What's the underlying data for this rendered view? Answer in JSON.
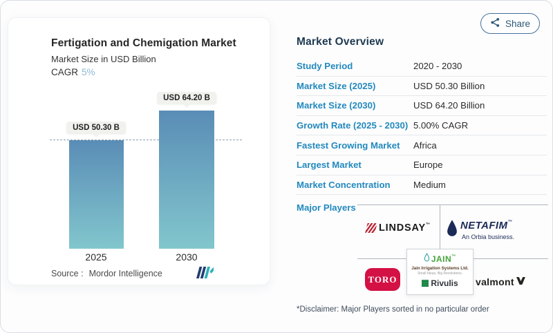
{
  "header": {
    "share_label": "Share"
  },
  "chart_panel": {
    "title": "Fertigation and Chemigation Market",
    "subtitle": "Market Size in USD Billion",
    "cagr_label": "CAGR",
    "cagr_value": "5%",
    "source_label": "Source :",
    "source_value": "Mordor Intelligence"
  },
  "chart_data": {
    "type": "bar",
    "title": "Fertigation and Chemigation Market",
    "ylabel": "Market Size in USD Billion",
    "unit": "USD Billion",
    "categories": [
      "2025",
      "2030"
    ],
    "values": [
      50.3,
      64.2
    ],
    "bar_labels": [
      "USD 50.30 B",
      "USD 64.20 B"
    ],
    "cagr": "5%",
    "ylim": [
      0,
      64.2
    ],
    "grid": false,
    "reference_line": {
      "at_value": 50.3,
      "style": "dashed"
    },
    "bar_color_top": "#5a8db6",
    "bar_color_bottom": "#82c6cd"
  },
  "overview": {
    "heading": "Market Overview",
    "rows": [
      {
        "label": "Study Period",
        "value": "2020 - 2030"
      },
      {
        "label": "Market Size (2025)",
        "value": "USD 50.30 Billion"
      },
      {
        "label": "Market Size (2030)",
        "value": "USD 64.20 Billion"
      },
      {
        "label": "Growth Rate (2025 - 2030)",
        "value": "5.00% CAGR"
      },
      {
        "label": "Fastest Growing Market",
        "value": "Africa"
      },
      {
        "label": "Largest Market",
        "value": "Europe"
      },
      {
        "label": "Market Concentration",
        "value": "Medium"
      }
    ],
    "major_players_label": "Major Players",
    "players": {
      "lindsay": {
        "name": "LINDSAY",
        "tm": "™"
      },
      "netafim": {
        "name": "NETAFIM",
        "tm": "™",
        "sub": "An Orbia business."
      },
      "toro": {
        "name": "TORO"
      },
      "jain": {
        "name": "JAIN",
        "tm": "™",
        "sub": "Jain Irrigation Systems Ltd.",
        "tagline": "Small Ideas, Big Revolutions."
      },
      "rivulis": {
        "name": "Rivulis"
      },
      "valmont": {
        "name": "valmont"
      }
    },
    "disclaimer": "*Disclaimer: Major Players sorted in no particular order"
  },
  "colors": {
    "accent_blue": "#2289bd",
    "heading_navy": "#1d3950",
    "cagr_blue": "#8fb9d4",
    "toro_red": "#d31145",
    "netafim_navy": "#1b2a56",
    "lindsay_red": "#bb2433",
    "mi_logo_navy": "#233e70",
    "mi_logo_teal": "#2db1bd"
  }
}
